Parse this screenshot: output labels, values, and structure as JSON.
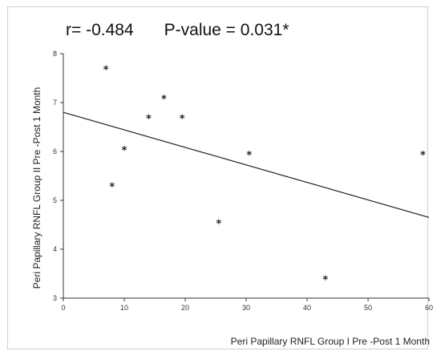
{
  "stats": {
    "r": "r= -0.484",
    "p": "P-value = 0.031*"
  },
  "chart_data": {
    "type": "scatter",
    "title": "",
    "xlabel": "Peri Papillary RNFL Group I Pre -Post 1 Month",
    "ylabel": "Peri Papillary RNFL Group II Pre -Post 1 Month",
    "xlim": [
      0,
      60
    ],
    "ylim": [
      3,
      8
    ],
    "xticks": [
      0,
      10,
      20,
      30,
      40,
      50,
      60
    ],
    "yticks": [
      3,
      4,
      5,
      6,
      7,
      8
    ],
    "grid": false,
    "marker": "*",
    "points": [
      {
        "x": 7,
        "y": 7.7
      },
      {
        "x": 8,
        "y": 5.3
      },
      {
        "x": 10,
        "y": 6.05
      },
      {
        "x": 14,
        "y": 6.7
      },
      {
        "x": 16.5,
        "y": 7.1
      },
      {
        "x": 19.5,
        "y": 6.7
      },
      {
        "x": 25.5,
        "y": 4.55
      },
      {
        "x": 30.5,
        "y": 5.95
      },
      {
        "x": 43,
        "y": 3.4
      },
      {
        "x": 59,
        "y": 5.95
      }
    ],
    "fit_line": {
      "x": [
        0,
        60
      ],
      "y": [
        6.8,
        4.65
      ]
    }
  },
  "colors": {
    "axis": "#333333",
    "marker": "#222222",
    "line": "#222222"
  }
}
